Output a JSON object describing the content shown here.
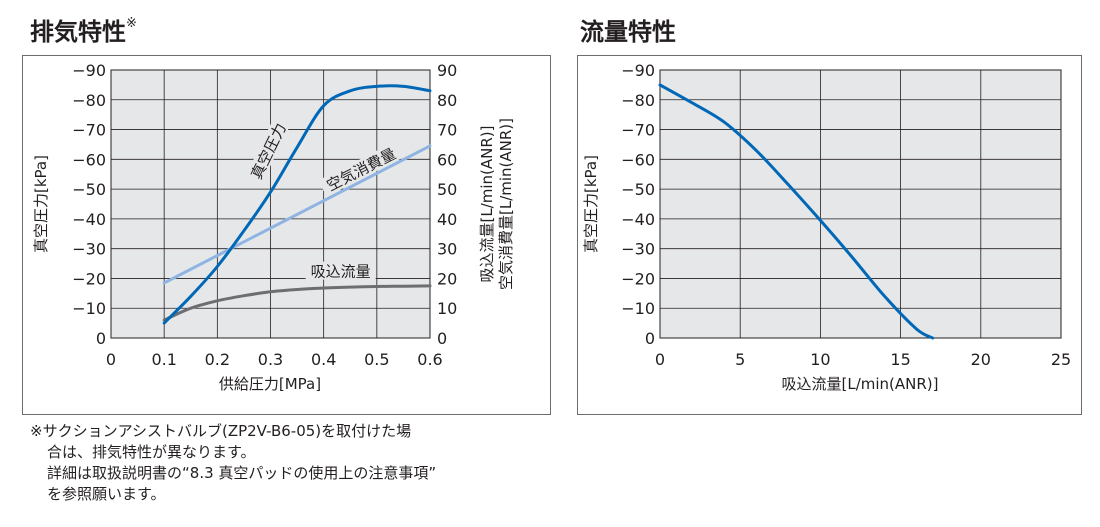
{
  "titles": {
    "left": "排気特性",
    "left_mark": "※",
    "right": "流量特性"
  },
  "note": {
    "line1": "※サクションアシストバルブ(ZP2V-B6-05)を取付けた場",
    "line2": "合は、排気特性が異なります。",
    "line3": "詳細は取扱説明書の“8.3 真空パッドの使用上の注意事項”",
    "line4": "を参照願います。"
  },
  "colors": {
    "plot_bg": "#e6e7e8",
    "grid": "#231f20",
    "vacuum": "#0068b7",
    "air_consumption": "#8fb4e3",
    "suction_flow": "#6d6e71"
  },
  "chart_data": [
    {
      "type": "line",
      "title": "排気特性※",
      "xlabel": "供給圧力[MPa]",
      "ylabel": "真空圧力[kPa]",
      "y2label": "吸込流量[L/min(ANR)]",
      "y3label": "空気消費量[L/min(ANR)]",
      "xlim": [
        0,
        0.6
      ],
      "ylim": [
        0,
        90
      ],
      "x_ticks": [
        "0",
        "0.1",
        "0.2",
        "0.3",
        "0.4",
        "0.5",
        "0.6"
      ],
      "y_ticks": [
        "0",
        "−10",
        "−20",
        "−30",
        "−40",
        "−50",
        "−60",
        "−70",
        "−80",
        "−90"
      ],
      "y2_ticks": [
        "0",
        "10",
        "20",
        "30",
        "40",
        "50",
        "60",
        "70",
        "80",
        "90"
      ],
      "grid": true,
      "series": [
        {
          "name": "真空圧力",
          "color": "#0068b7",
          "x": [
            0.1,
            0.15,
            0.2,
            0.25,
            0.3,
            0.35,
            0.4,
            0.45,
            0.5,
            0.55,
            0.6
          ],
          "y": [
            5,
            14,
            24,
            36,
            49,
            64,
            78,
            83,
            84.5,
            84.5,
            83
          ]
        },
        {
          "name": "空気消費量",
          "color": "#8fb4e3",
          "x": [
            0.1,
            0.6
          ],
          "y": [
            18.5,
            64.5
          ]
        },
        {
          "name": "吸込流量",
          "color": "#6d6e71",
          "x": [
            0.1,
            0.15,
            0.2,
            0.25,
            0.3,
            0.35,
            0.4,
            0.45,
            0.5,
            0.55,
            0.6
          ],
          "y": [
            6,
            10,
            12.5,
            14.2,
            15.5,
            16.3,
            16.8,
            17.1,
            17.3,
            17.4,
            17.5
          ]
        }
      ]
    },
    {
      "type": "line",
      "title": "流量特性",
      "xlabel": "吸込流量[L/min(ANR)]",
      "ylabel": "真空圧力[kPa]",
      "xlim": [
        0,
        25
      ],
      "ylim": [
        0,
        90
      ],
      "x_ticks": [
        "0",
        "5",
        "10",
        "15",
        "20",
        "25"
      ],
      "y_ticks": [
        "0",
        "−10",
        "−20",
        "−30",
        "−40",
        "−50",
        "−60",
        "−70",
        "−80",
        "−90"
      ],
      "grid": true,
      "series": [
        {
          "name": "真空圧力",
          "color": "#0068b7",
          "x": [
            0,
            2,
            4,
            6,
            8,
            10,
            12,
            14,
            16,
            17
          ],
          "y": [
            85,
            79,
            72.5,
            63,
            51.5,
            39.5,
            27,
            14,
            3,
            0
          ]
        }
      ]
    }
  ]
}
